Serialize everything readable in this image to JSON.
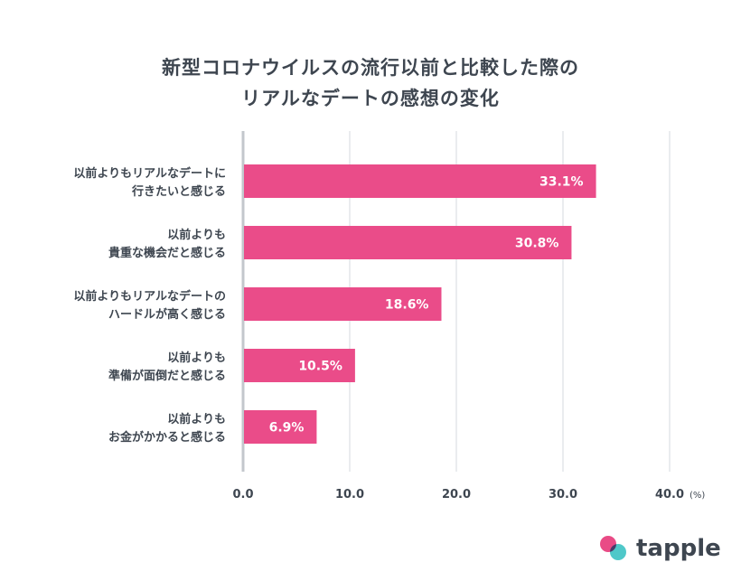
{
  "title": {
    "line1": "新型コロナウイルスの流行以前と比較した際の",
    "line2": "リアルなデートの感想の変化"
  },
  "chart_data": {
    "type": "bar",
    "orientation": "horizontal",
    "categories": [
      [
        "以前よりもリアルなデートに",
        "行きたいと感じる"
      ],
      [
        "以前よりも",
        "貴重な機会だと感じる"
      ],
      [
        "以前よりもリアルなデートの",
        "ハードルが高く感じる"
      ],
      [
        "以前よりも",
        "準備が面倒だと感じる"
      ],
      [
        "以前よりも",
        "お金がかかると感じる"
      ]
    ],
    "values": [
      33.1,
      30.8,
      18.6,
      10.5,
      6.9
    ],
    "value_labels": [
      "33.1%",
      "30.8%",
      "18.6%",
      "10.5%",
      "6.9%"
    ],
    "xlim": [
      0,
      40
    ],
    "xticks": [
      "0.0",
      "10.0",
      "20.0",
      "30.0",
      "40.0"
    ],
    "xunit": "(%)",
    "grid": true,
    "bar_color": "#ea4c89",
    "grid_color": "#dde0e4",
    "axis_color": "#c3c7cc"
  },
  "logo": {
    "text": "tapple",
    "colors": [
      "#e94b86",
      "#4fc8c9"
    ]
  }
}
